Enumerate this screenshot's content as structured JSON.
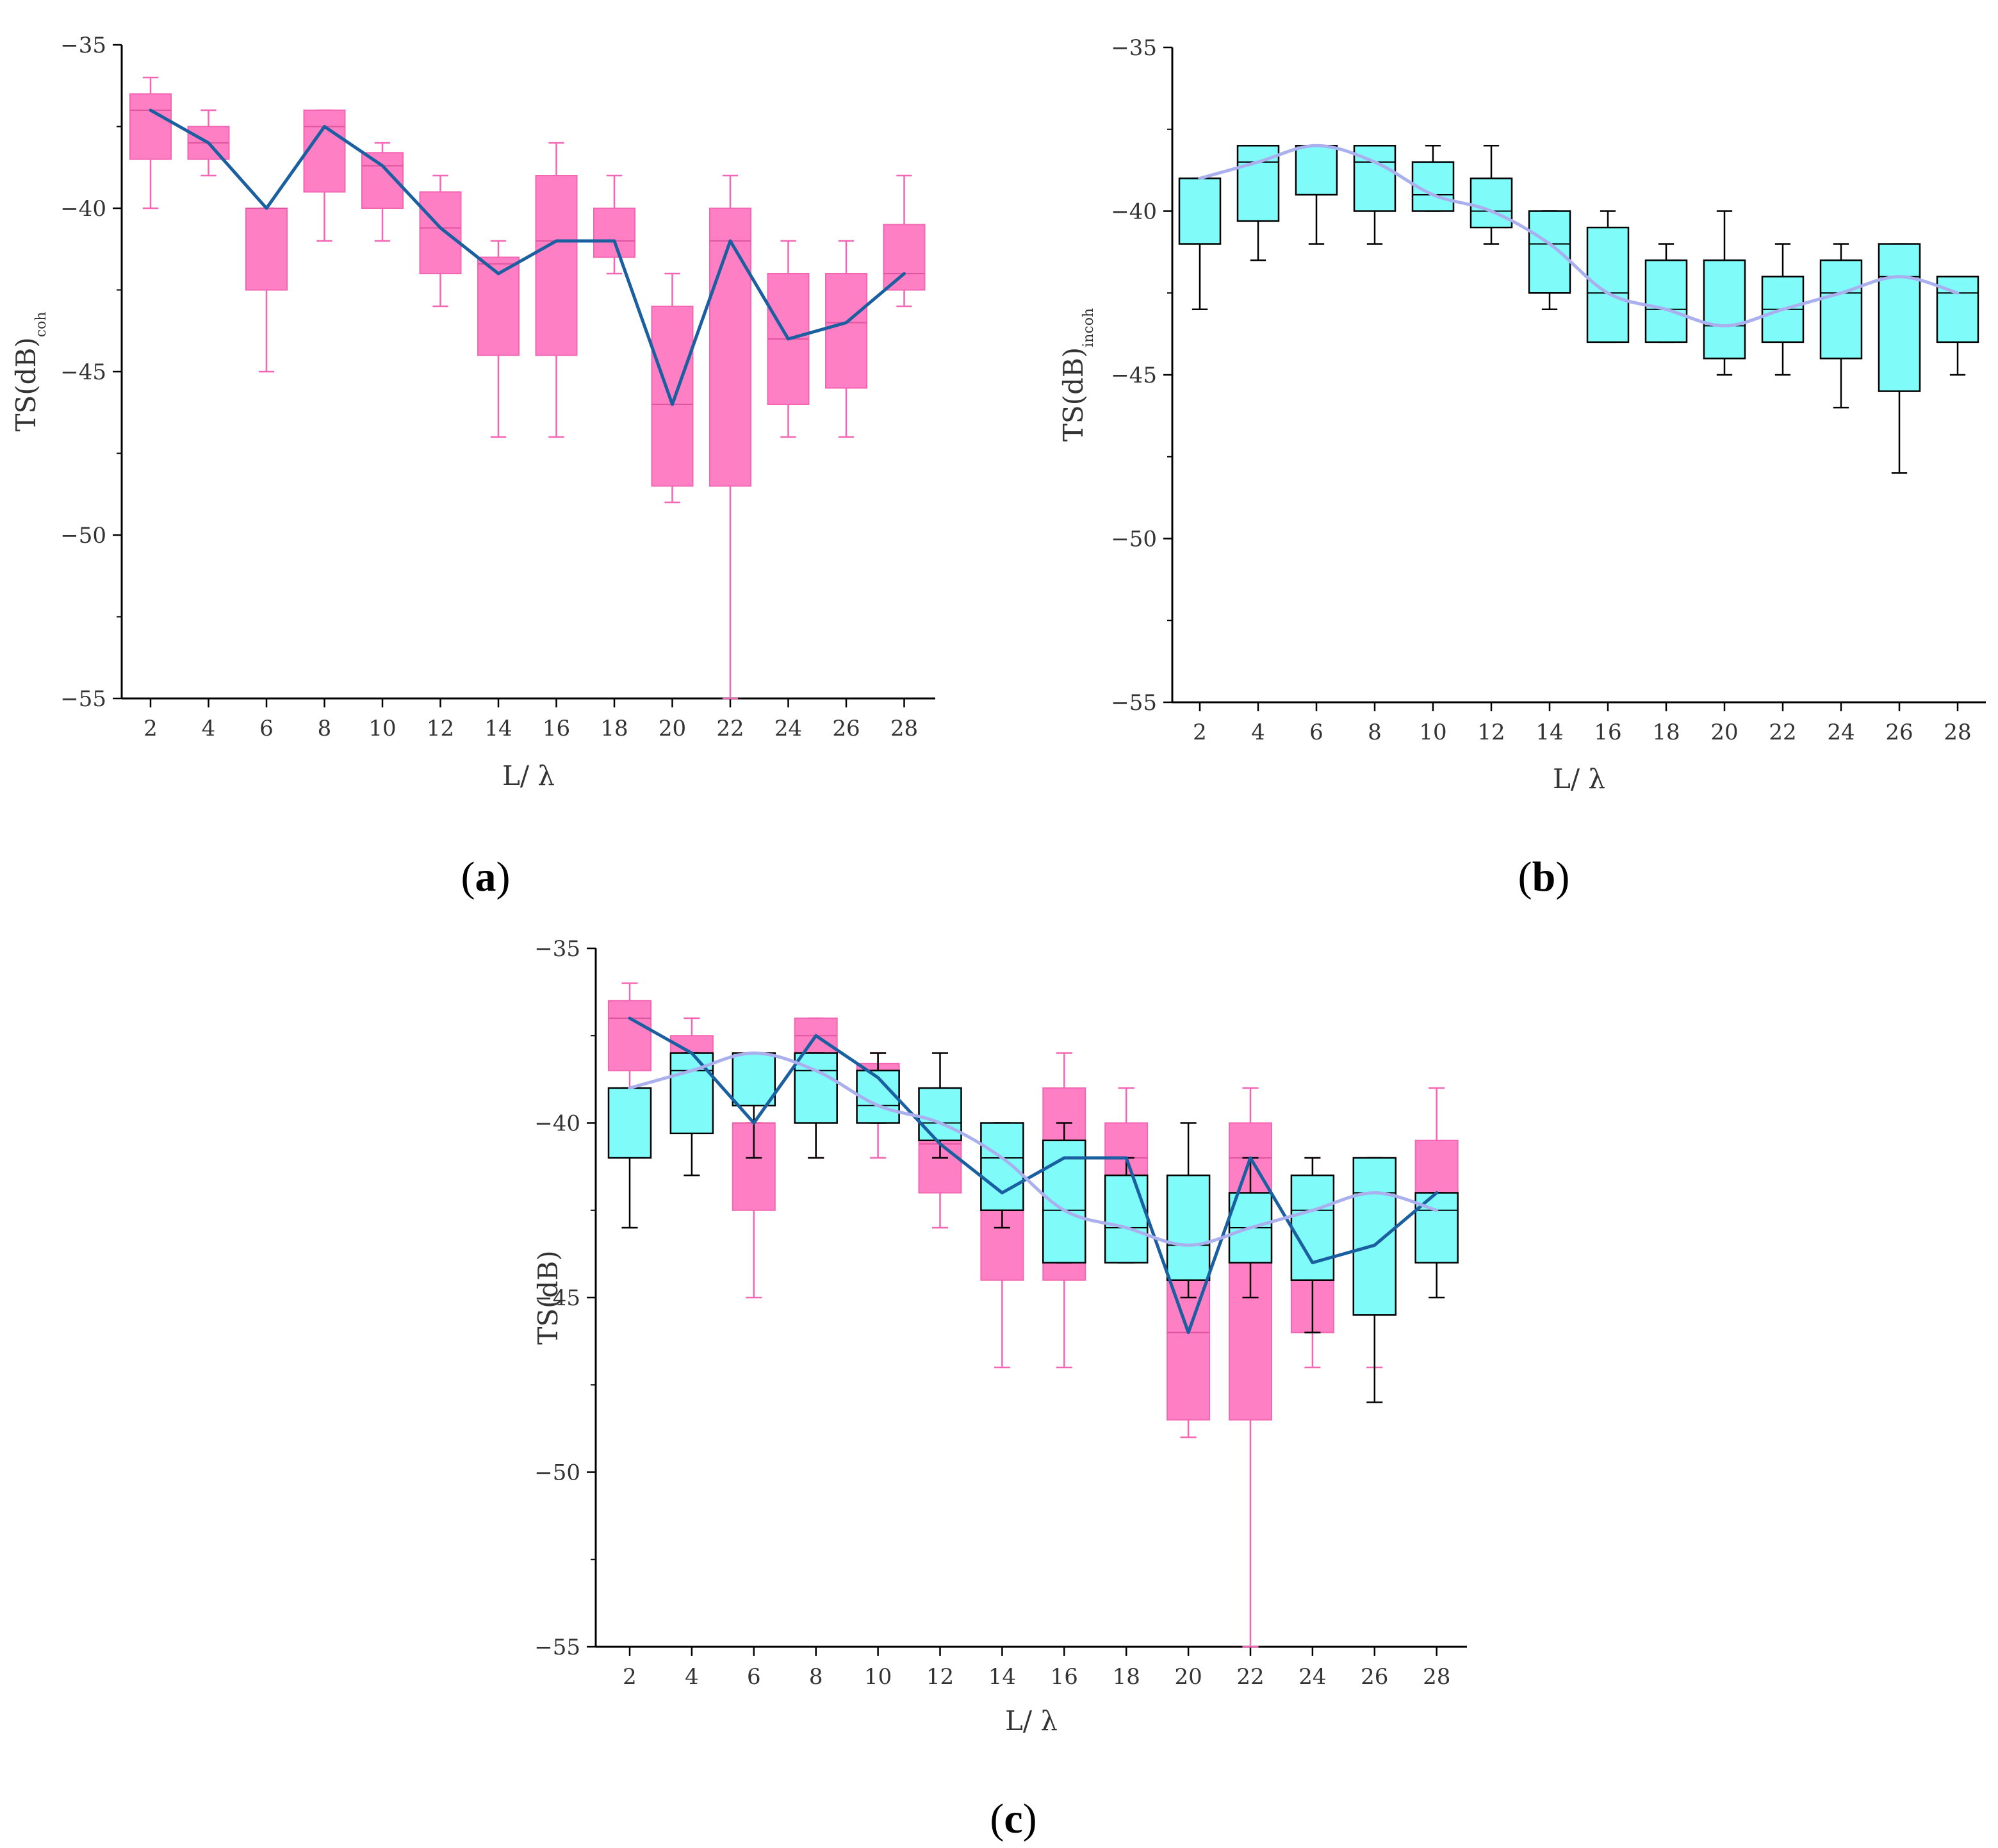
{
  "colors": {
    "coh_box_fill": "#ff7fc4",
    "coh_box_stroke": "#f266b4",
    "coh_whisker": "#f266b4",
    "coh_line": "#1a5fa0",
    "incoh_box_fill": "#7ffbfa",
    "incoh_box_stroke": "#000000",
    "incoh_whisker": "#000000",
    "incoh_line": "#aab0ee",
    "axis": "#000000"
  },
  "chart_data": [
    {
      "id": "a",
      "type": "box",
      "caption": {
        "open": "(",
        "letter": "a",
        "close": ")"
      },
      "xlabel": "L/ λ",
      "ylabel": "TS(dB)",
      "ylabel_sub": "coh",
      "ylim": [
        -55,
        -35
      ],
      "yticks": [
        -35,
        -40,
        -45,
        -50,
        -55
      ],
      "categories": [
        "2",
        "4",
        "6",
        "8",
        "10",
        "12",
        "14",
        "16",
        "18",
        "20",
        "22",
        "24",
        "26",
        "28"
      ],
      "series": [
        {
          "name": "coh",
          "style": "coh",
          "min": [
            -40,
            -39,
            -45,
            -41,
            -41,
            -43,
            -47,
            -47,
            -42,
            -49,
            -55,
            -47,
            -47,
            -43
          ],
          "q1": [
            -38.5,
            -38.5,
            -42.5,
            -39.5,
            -40,
            -42,
            -44.5,
            -44.5,
            -41.5,
            -48.5,
            -48.5,
            -46,
            -45.5,
            -42.5
          ],
          "median": [
            -37,
            -38,
            -40,
            -37.5,
            -38.7,
            -40.6,
            -41.7,
            -41,
            -41,
            -46,
            -41,
            -44,
            -43.5,
            -42
          ],
          "q3": [
            -36.5,
            -37.5,
            -40,
            -37,
            -38.3,
            -39.5,
            -41.5,
            -39,
            -40,
            -43,
            -40,
            -42,
            -42,
            -40.5
          ],
          "max": [
            -36,
            -37,
            -40,
            -37,
            -38,
            -39,
            -41,
            -38,
            -39,
            -42,
            -39,
            -41,
            -41,
            -39
          ],
          "line": [
            -37,
            -38,
            -40,
            -37.5,
            -38.7,
            -40.6,
            -42,
            -41,
            -41,
            -46,
            -41,
            -44,
            -43.5,
            -42
          ]
        }
      ]
    },
    {
      "id": "b",
      "type": "box",
      "caption": {
        "open": "(",
        "letter": "b",
        "close": ")"
      },
      "xlabel": "L/ λ",
      "ylabel": "TS(dB)",
      "ylabel_sub": "incoh",
      "ylim": [
        -55,
        -35
      ],
      "yticks": [
        -35,
        -40,
        -45,
        -50,
        -55
      ],
      "categories": [
        "2",
        "4",
        "6",
        "8",
        "10",
        "12",
        "14",
        "16",
        "18",
        "20",
        "22",
        "24",
        "26",
        "28"
      ],
      "series": [
        {
          "name": "incoh",
          "style": "incoh",
          "min": [
            -43,
            -41.5,
            -41,
            -41,
            -40,
            -41,
            -43,
            -44,
            -44,
            -45,
            -45,
            -46,
            -48,
            -45
          ],
          "q1": [
            -41,
            -40.3,
            -39.5,
            -40,
            -40,
            -40.5,
            -42.5,
            -44,
            -44,
            -44.5,
            -44,
            -44.5,
            -45.5,
            -44
          ],
          "median": [
            -39,
            -38.5,
            -38,
            -38.5,
            -39.5,
            -40,
            -41,
            -42.5,
            -43,
            -43.5,
            -43,
            -42.5,
            -42,
            -42.5
          ],
          "q3": [
            -39,
            -38,
            -38,
            -38,
            -38.5,
            -39,
            -40,
            -40.5,
            -41.5,
            -41.5,
            -42,
            -41.5,
            -41,
            -42
          ],
          "max": [
            -39,
            -38,
            -38,
            -38,
            -38,
            -38,
            -40,
            -40,
            -41,
            -40,
            -41,
            -41,
            -41,
            -42
          ],
          "line": [
            -39,
            -38.5,
            -38,
            -38.5,
            -39.5,
            -40,
            -41,
            -42.5,
            -43,
            -43.5,
            -43,
            -42.5,
            -42,
            -42.5
          ]
        }
      ]
    },
    {
      "id": "c",
      "type": "box",
      "caption": {
        "open": "(",
        "letter": "c",
        "close": ")"
      },
      "xlabel": "L/ λ",
      "ylabel": "TS(dB)",
      "ylabel_sub": "",
      "ylim": [
        -55,
        -35
      ],
      "yticks": [
        -35,
        -40,
        -45,
        -50,
        -55
      ],
      "categories": [
        "2",
        "4",
        "6",
        "8",
        "10",
        "12",
        "14",
        "16",
        "18",
        "20",
        "22",
        "24",
        "26",
        "28"
      ],
      "series": [
        {
          "name": "coh",
          "style": "coh",
          "min": [
            -40,
            -39,
            -45,
            -41,
            -41,
            -43,
            -47,
            -47,
            -42,
            -49,
            -55,
            -47,
            -47,
            -43
          ],
          "q1": [
            -38.5,
            -38.5,
            -42.5,
            -39.5,
            -40,
            -42,
            -44.5,
            -44.5,
            -41.5,
            -48.5,
            -48.5,
            -46,
            -45.5,
            -42.5
          ],
          "median": [
            -37,
            -38,
            -40,
            -37.5,
            -38.7,
            -40.6,
            -41.7,
            -41,
            -41,
            -46,
            -41,
            -44,
            -43.5,
            -42
          ],
          "q3": [
            -36.5,
            -37.5,
            -40,
            -37,
            -38.3,
            -39.5,
            -41.5,
            -39,
            -40,
            -43,
            -40,
            -42,
            -42,
            -40.5
          ],
          "max": [
            -36,
            -37,
            -40,
            -37,
            -38,
            -39,
            -41,
            -38,
            -39,
            -42,
            -39,
            -41,
            -41,
            -39
          ],
          "line": [
            -37,
            -38,
            -40,
            -37.5,
            -38.7,
            -40.6,
            -42,
            -41,
            -41,
            -46,
            -41,
            -44,
            -43.5,
            -42
          ]
        },
        {
          "name": "incoh",
          "style": "incoh",
          "min": [
            -43,
            -41.5,
            -41,
            -41,
            -40,
            -41,
            -43,
            -44,
            -44,
            -45,
            -45,
            -46,
            -48,
            -45
          ],
          "q1": [
            -41,
            -40.3,
            -39.5,
            -40,
            -40,
            -40.5,
            -42.5,
            -44,
            -44,
            -44.5,
            -44,
            -44.5,
            -45.5,
            -44
          ],
          "median": [
            -39,
            -38.5,
            -38,
            -38.5,
            -39.5,
            -40,
            -41,
            -42.5,
            -43,
            -43.5,
            -43,
            -42.5,
            -42,
            -42.5
          ],
          "q3": [
            -39,
            -38,
            -38,
            -38,
            -38.5,
            -39,
            -40,
            -40.5,
            -41.5,
            -41.5,
            -42,
            -41.5,
            -41,
            -42
          ],
          "max": [
            -39,
            -38,
            -38,
            -38,
            -38,
            -38,
            -40,
            -40,
            -41,
            -40,
            -41,
            -41,
            -41,
            -42
          ],
          "line": [
            -39,
            -38.5,
            -38,
            -38.5,
            -39.5,
            -40,
            -41,
            -42.5,
            -43,
            -43.5,
            -43,
            -42.5,
            -42,
            -42.5
          ]
        }
      ]
    }
  ]
}
